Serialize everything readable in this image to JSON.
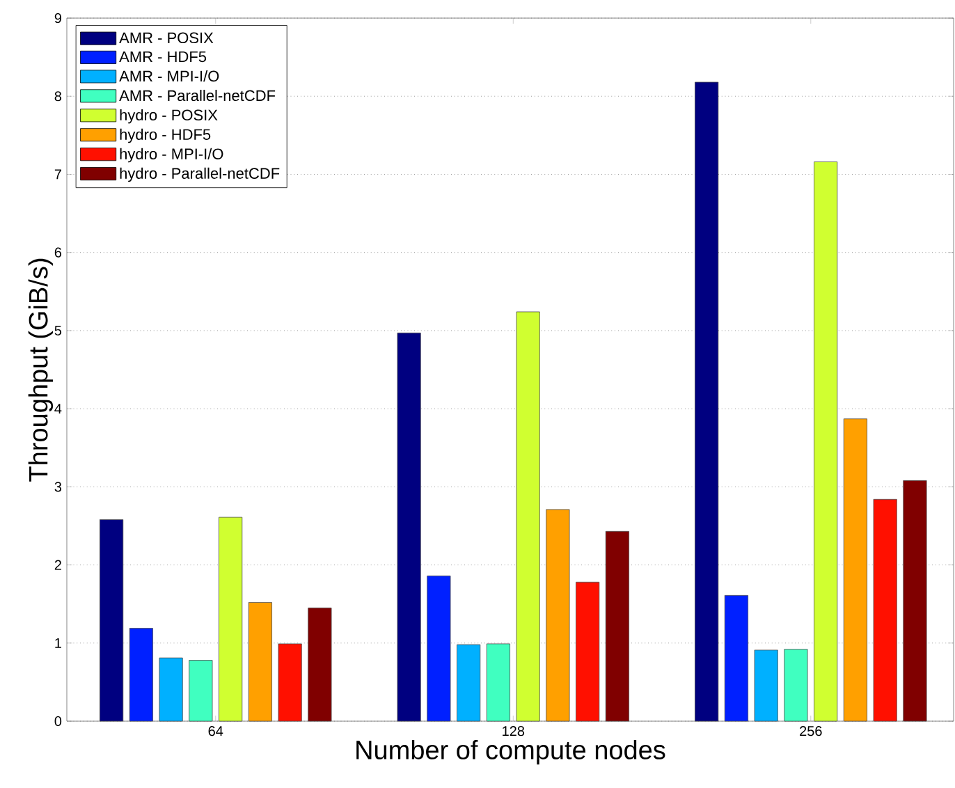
{
  "chart_data": {
    "type": "bar",
    "xlabel": "Number of compute nodes",
    "ylabel": "Throughput (GiB/s)",
    "categories": [
      "64",
      "128",
      "256"
    ],
    "ylim": [
      0,
      9
    ],
    "yticks": [
      0,
      1,
      2,
      3,
      4,
      5,
      6,
      7,
      8,
      9
    ],
    "grid": "y",
    "legend": "top left",
    "series": [
      {
        "name": "AMR - POSIX",
        "color": "#000080",
        "values": [
          2.58,
          4.97,
          8.18
        ]
      },
      {
        "name": "AMR - HDF5",
        "color": "#0020ff",
        "values": [
          1.19,
          1.86,
          1.61
        ]
      },
      {
        "name": "AMR - MPI-I/O",
        "color": "#00b0ff",
        "values": [
          0.81,
          0.98,
          0.91
        ]
      },
      {
        "name": "AMR - Parallel-netCDF",
        "color": "#40ffc0",
        "values": [
          0.78,
          0.99,
          0.92
        ]
      },
      {
        "name": "hydro - POSIX",
        "color": "#d0ff30",
        "values": [
          2.61,
          5.24,
          7.16
        ]
      },
      {
        "name": "hydro - HDF5",
        "color": "#ffa000",
        "values": [
          1.52,
          2.71,
          3.87
        ]
      },
      {
        "name": "hydro - MPI-I/O",
        "color": "#ff1000",
        "values": [
          0.99,
          1.78,
          2.84
        ]
      },
      {
        "name": "hydro - Parallel-netCDF",
        "color": "#800000",
        "values": [
          1.45,
          2.43,
          3.08
        ]
      }
    ]
  }
}
